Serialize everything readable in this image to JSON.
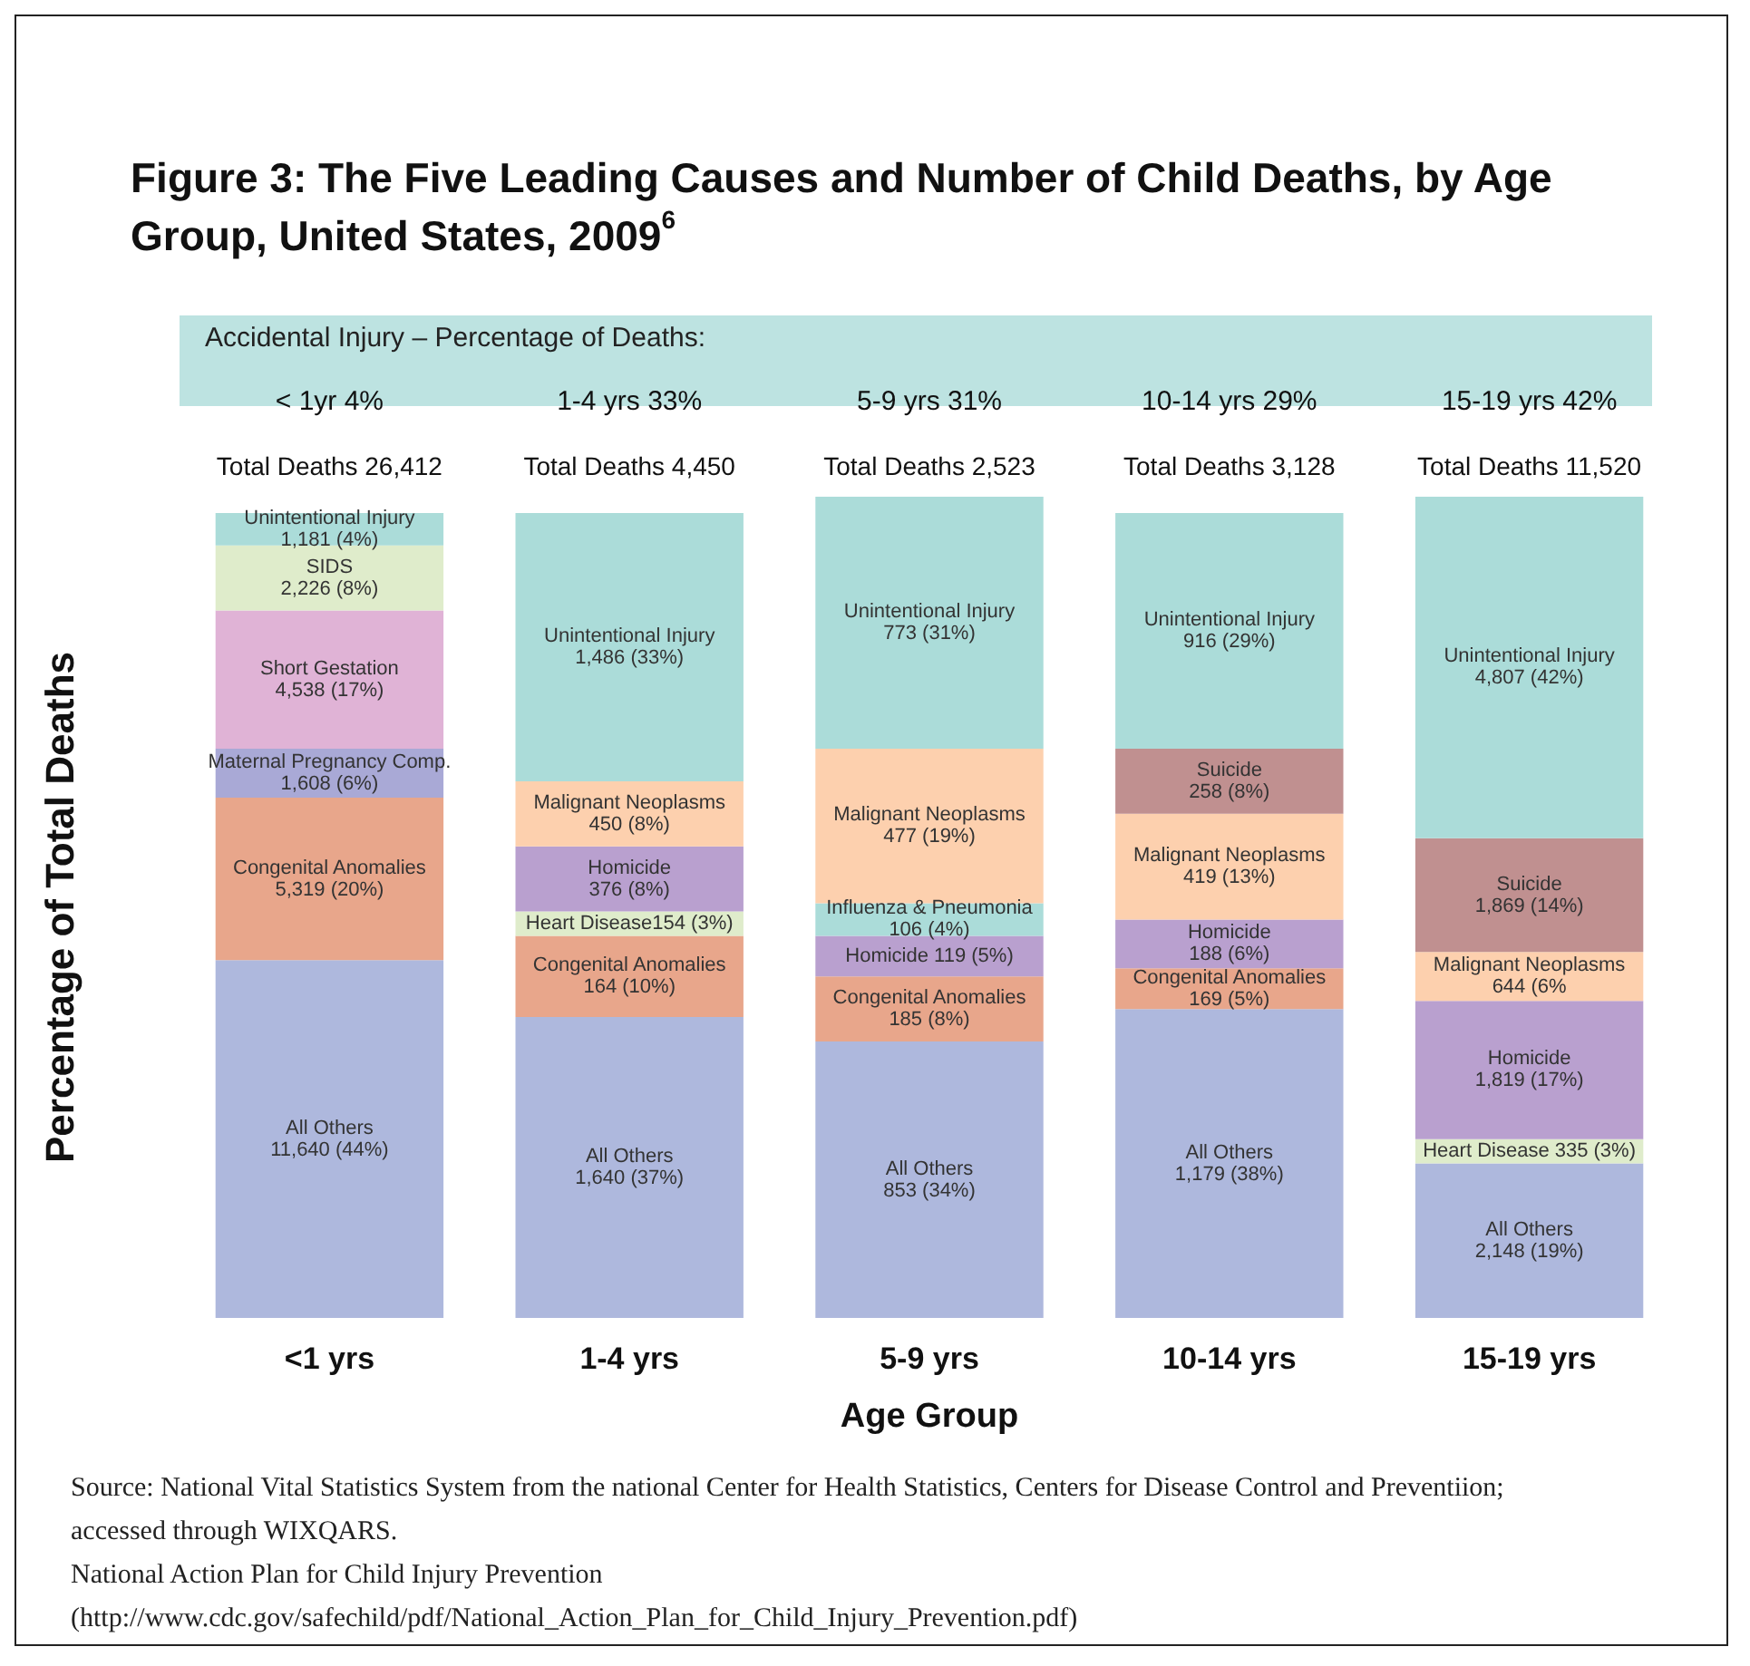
{
  "chart_data": {
    "type": "bar",
    "stacked": true,
    "title": "Figure 3: The Five Leading Causes and Number of Child Deaths, by Age Group, United States, 2009$^{6}$",
    "xlabel": "Age Group",
    "ylabel": "Percentage of Total Deaths",
    "categories": [
      "<1 yrs",
      "1-4 yrs",
      "5-9 yrs",
      "10-14 yrs",
      "15-19 yrs"
    ],
    "totals": [
      "Total Deaths 26,412",
      "Total Deaths 4,450",
      "Total Deaths 2,523",
      "Total Deaths 3,128",
      "Total Deaths 11,520"
    ],
    "annotations": [
      "Accidental Injury – Percentage of Deaths:",
      "< 1yr 4%",
      "1-4 yrs 33%",
      "5-9 yrs 31%",
      "10-14 yrs 29%",
      "15-19 yrs 42%",
      "Source: National Vital Statistics System from the national Center for Health Statistics, Centers for Disease Control and Preventiion; accessed through WIXQARS.",
      "National Action Plan for Child Injury Prevention",
      "(http://www.cdc.gov/safechild/pdf/National_Action_Plan_for_Child_Injury_Prevention.pdf)"
    ],
    "series": [
      {
        "values": [
          44,
          37,
          34,
          38,
          19
        ],
        "colors": [
          "#aeb8dd",
          "#aeb8dd",
          "#aeb8dd",
          "#aeb8dd",
          "#aeb8dd"
        ],
        "value_labels": [
          "All Others\n11,640 (44%)",
          "All Others\n1,640 (37%)",
          "All Others\n853 (34%)",
          "All Others\n1,179 (38%)",
          "All Others\n2,148 (19%)"
        ]
      },
      {
        "values": [
          20,
          10,
          8,
          5,
          3
        ],
        "colors": [
          "#e8a68b",
          "#e8a68b",
          "#e8a68b",
          "#e8a68b",
          "#dfeccb"
        ],
        "value_labels": [
          "Congenital Anomalies\n5,319 (20%)",
          "Congenital Anomalies\n164 (10%)",
          "Congenital Anomalies\n185 (8%)",
          "Congenital Anomalies\n169 (5%)",
          "Heart Disease 335 (3%)"
        ]
      },
      {
        "values": [
          6,
          3,
          5,
          6,
          17
        ],
        "colors": [
          "#a9a9d6",
          "#dfeccb",
          "#b9a0cf",
          "#b9a0cf",
          "#b9a0cf"
        ],
        "value_labels": [
          "Maternal Pregnancy Comp.\n1,608 (6%)",
          "Heart Disease154 (3%)",
          "Homicide 119 (5%)",
          "Homicide\n188 (6%)",
          "Homicide\n1,819 (17%)"
        ]
      },
      {
        "values": [
          17,
          8,
          4,
          13,
          6
        ],
        "colors": [
          "#e0b3d6",
          "#b9a0cf",
          "#abdcd9",
          "#fdd0ae",
          "#fdd0ae"
        ],
        "value_labels": [
          "Short Gestation\n4,538 (17%)",
          "Homicide\n376 (8%)",
          "Influenza & Pneumonia\n106 (4%)",
          "Malignant Neoplasms\n419 (13%)",
          "Malignant Neoplasms\n644 (6%"
        ]
      },
      {
        "values": [
          8,
          8,
          19,
          8,
          14
        ],
        "colors": [
          "#dfeccb",
          "#fdd0ae",
          "#fdd0ae",
          "#c09090",
          "#c09090"
        ],
        "value_labels": [
          "SIDS\n2,226 (8%)",
          "Malignant Neoplasms\n450 (8%)",
          "Malignant Neoplasms\n477 (19%)",
          "Suicide\n258 (8%)",
          "Suicide\n1,869 (14%)"
        ]
      },
      {
        "values": [
          4,
          33,
          31,
          29,
          42
        ],
        "colors": [
          "#abdcd9",
          "#abdcd9",
          "#abdcd9",
          "#abdcd9",
          "#abdcd9"
        ],
        "value_labels": [
          "Unintentional Injury\n1,181 (4%)",
          "Unintentional Injury\n1,486 (33%)",
          "Unintentional Injury\n773 (31%)",
          "Unintentional Injury\n916 (29%)",
          "Unintentional Injury\n4,807 (42%)"
        ]
      }
    ],
    "grid": false,
    "tick_labels": "x"
  }
}
